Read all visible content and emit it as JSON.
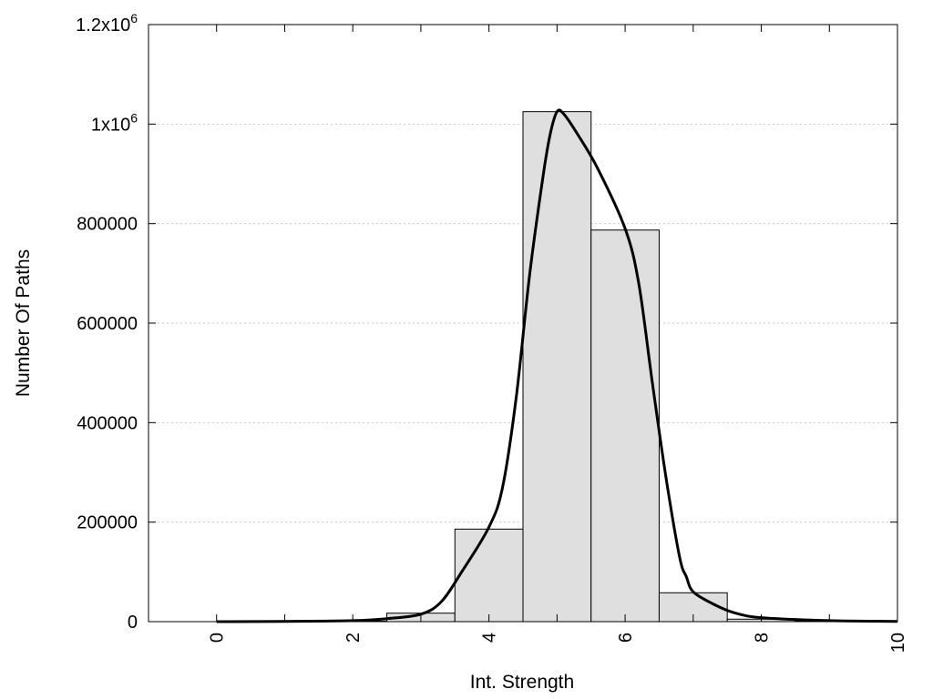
{
  "chart_data": {
    "type": "bar",
    "xlabel": "Int. Strength",
    "ylabel": "Number Of Paths",
    "xlim": [
      -1,
      10
    ],
    "ylim": [
      0,
      1200000
    ],
    "grid": true,
    "x_ticks": [
      {
        "value": 0,
        "label": "0"
      },
      {
        "value": 2,
        "label": "2"
      },
      {
        "value": 4,
        "label": "4"
      },
      {
        "value": 6,
        "label": "6"
      },
      {
        "value": 8,
        "label": "8"
      },
      {
        "value": 10,
        "label": "10"
      }
    ],
    "y_ticks": [
      {
        "value": 0,
        "label": "0",
        "sup": ""
      },
      {
        "value": 200000,
        "label": "200000",
        "sup": ""
      },
      {
        "value": 400000,
        "label": "400000",
        "sup": ""
      },
      {
        "value": 600000,
        "label": "600000",
        "sup": ""
      },
      {
        "value": 800000,
        "label": "800000",
        "sup": ""
      },
      {
        "value": 1000000,
        "label": "1x10",
        "sup": "6"
      },
      {
        "value": 1200000,
        "label": "1.2x10",
        "sup": "6"
      }
    ],
    "bins": [
      {
        "x": 0,
        "value": 0
      },
      {
        "x": 1,
        "value": 0
      },
      {
        "x": 2,
        "value": 1000
      },
      {
        "x": 3,
        "value": 17000
      },
      {
        "x": 4,
        "value": 186000
      },
      {
        "x": 5,
        "value": 1025000
      },
      {
        "x": 6,
        "value": 787000
      },
      {
        "x": 7,
        "value": 58000
      },
      {
        "x": 8,
        "value": 5000
      },
      {
        "x": 9,
        "value": 1000
      }
    ],
    "bin_width": 1,
    "fit_curve": {
      "x": [
        0,
        1,
        2,
        2.5,
        3,
        3.3,
        3.6,
        4,
        4.2,
        4.4,
        4.6,
        4.8,
        4.9,
        5,
        5.1,
        5.3,
        5.6,
        6,
        6.2,
        6.4,
        6.6,
        6.8,
        6.9,
        7,
        7.3,
        7.6,
        8,
        9,
        10
      ],
      "y": [
        0,
        500,
        2000,
        6000,
        15000,
        40000,
        100000,
        190000,
        270000,
        450000,
        700000,
        900000,
        980000,
        1025000,
        1020000,
        980000,
        910000,
        790000,
        680000,
        480000,
        290000,
        130000,
        90000,
        60000,
        35000,
        18000,
        8000,
        2000,
        500
      ]
    },
    "colors": {
      "bar_fill": "#dfdfdf",
      "bar_stroke": "#000000",
      "curve": "#000000"
    }
  }
}
